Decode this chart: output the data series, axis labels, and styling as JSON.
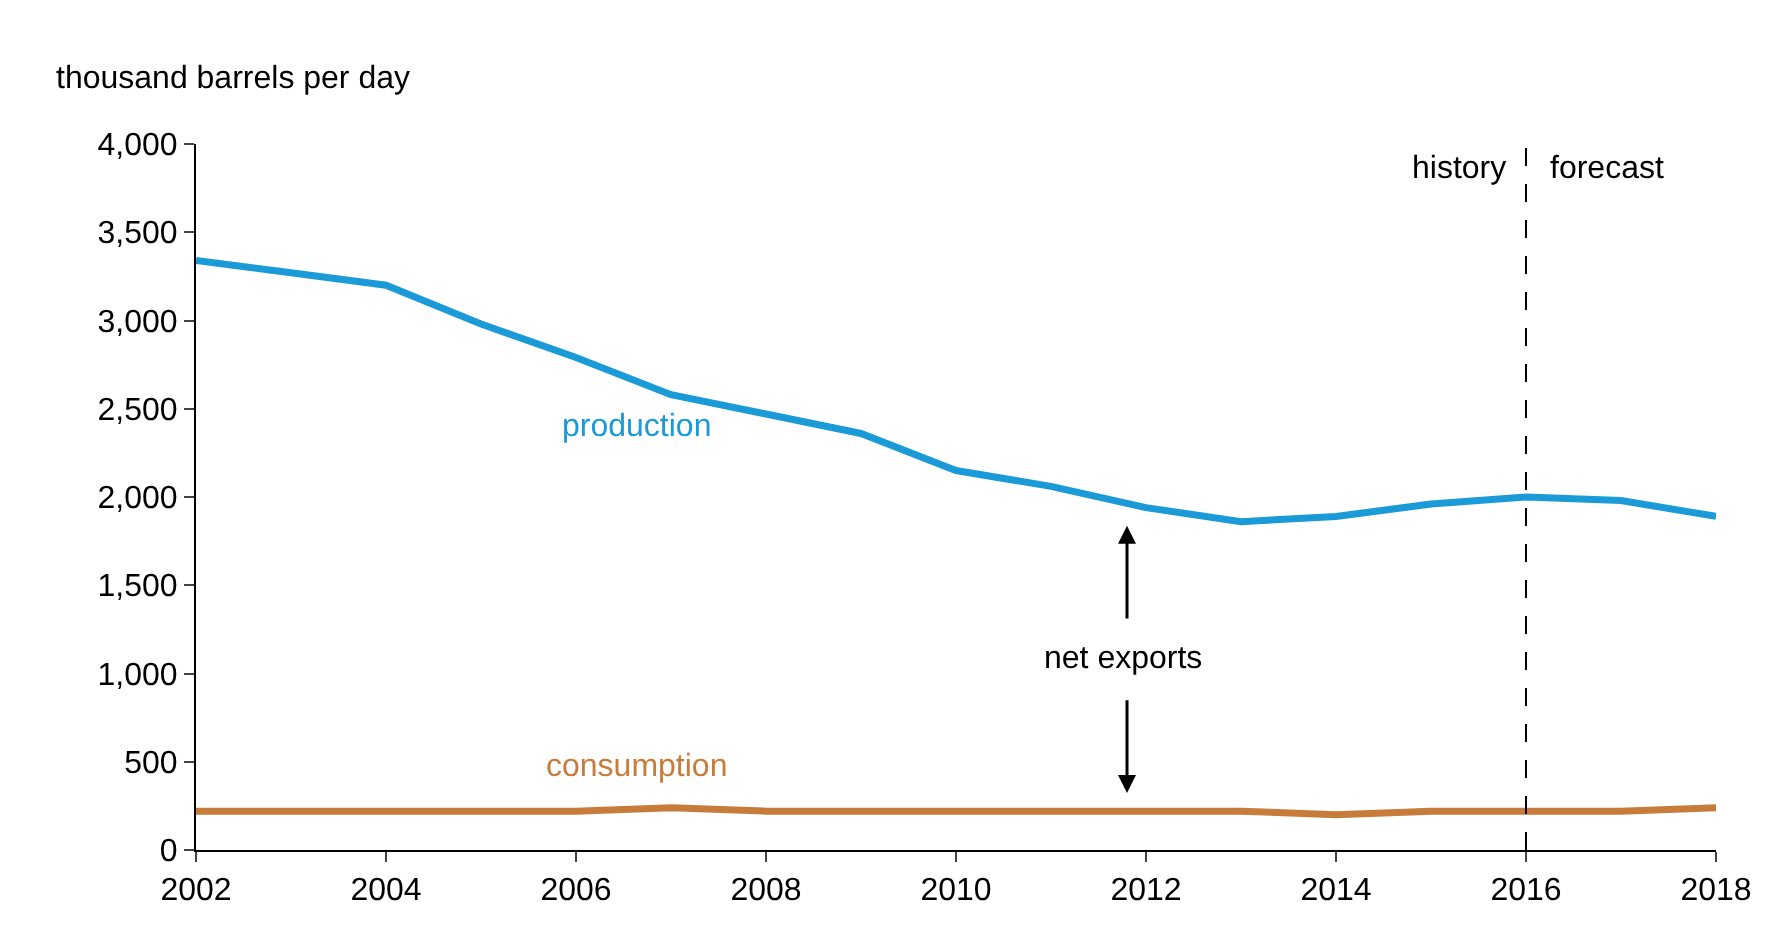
{
  "chart_data": {
    "type": "line",
    "ylabel": "thousand barrels per day",
    "x": [
      2002,
      2003,
      2004,
      2005,
      2006,
      2007,
      2008,
      2009,
      2010,
      2011,
      2012,
      2013,
      2014,
      2015,
      2016,
      2017,
      2018
    ],
    "series": [
      {
        "name": "production",
        "color": "#1a9ad6",
        "values": [
          3340,
          3270,
          3200,
          2980,
          2790,
          2580,
          2470,
          2360,
          2150,
          2060,
          1940,
          1860,
          1890,
          1960,
          2000,
          1980,
          1890
        ]
      },
      {
        "name": "consumption",
        "color": "#c87c3c",
        "values": [
          220,
          220,
          220,
          220,
          220,
          240,
          220,
          220,
          220,
          220,
          220,
          220,
          200,
          220,
          220,
          220,
          240
        ]
      }
    ],
    "xlim": [
      2002,
      2018
    ],
    "xticks": [
      2002,
      2004,
      2006,
      2008,
      2010,
      2012,
      2014,
      2016,
      2018
    ],
    "ylim": [
      0,
      4000
    ],
    "yticks": [
      {
        "value": 0,
        "label": "0"
      },
      {
        "value": 500,
        "label": "500"
      },
      {
        "value": 1000,
        "label": "1,000"
      },
      {
        "value": 1500,
        "label": "1,500"
      },
      {
        "value": 2000,
        "label": "2,000"
      },
      {
        "value": 2500,
        "label": "2,500"
      },
      {
        "value": 3000,
        "label": "3,000"
      },
      {
        "value": 3500,
        "label": "3,500"
      },
      {
        "value": 4000,
        "label": "4,000"
      }
    ],
    "legend": false,
    "marker": "none",
    "line_style": "solid",
    "ref_lines": [
      {
        "axis": "x",
        "value": 2016,
        "label": "history",
        "color": "#000000",
        "line_style": "dashed"
      }
    ],
    "annotations": [
      "forecast",
      "net exports"
    ]
  }
}
